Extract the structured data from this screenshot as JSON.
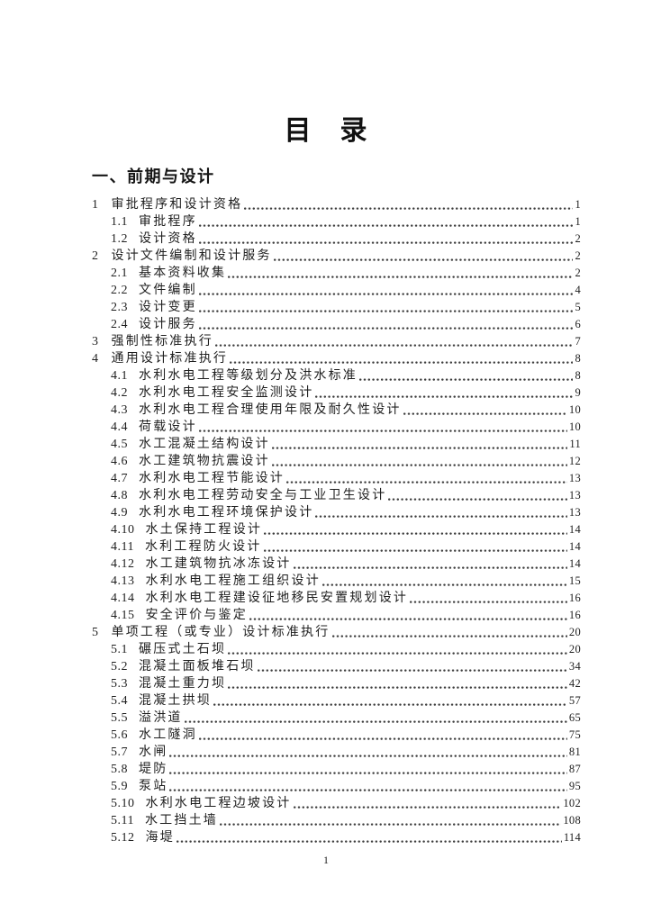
{
  "page": {
    "title": "目　录",
    "section_heading": "一、前期与设计",
    "footer_page_number": "1"
  },
  "colors": {
    "ink": "#1f1f1f",
    "paper": "#ffffff"
  },
  "toc": {
    "entries": [
      {
        "level": 1,
        "num": "1",
        "title": "审批程序和设计资格",
        "page": "1"
      },
      {
        "level": 2,
        "num": "1.1",
        "title": "审批程序",
        "page": "1"
      },
      {
        "level": 2,
        "num": "1.2",
        "title": "设计资格",
        "page": "2"
      },
      {
        "level": 1,
        "num": "2",
        "title": "设计文件编制和设计服务",
        "page": "2"
      },
      {
        "level": 2,
        "num": "2.1",
        "title": "基本资料收集",
        "page": "2"
      },
      {
        "level": 2,
        "num": "2.2",
        "title": "文件编制",
        "page": "4"
      },
      {
        "level": 2,
        "num": "2.3",
        "title": "设计变更",
        "page": "5"
      },
      {
        "level": 2,
        "num": "2.4",
        "title": "设计服务",
        "page": "6"
      },
      {
        "level": 1,
        "num": "3",
        "title": "强制性标准执行",
        "page": "7"
      },
      {
        "level": 1,
        "num": "4",
        "title": "通用设计标准执行",
        "page": "8"
      },
      {
        "level": 2,
        "num": "4.1",
        "title": "水利水电工程等级划分及洪水标准",
        "page": "8"
      },
      {
        "level": 2,
        "num": "4.2",
        "title": "水利水电工程安全监测设计",
        "page": "9"
      },
      {
        "level": 2,
        "num": "4.3",
        "title": "水利水电工程合理使用年限及耐久性设计",
        "page": "10"
      },
      {
        "level": 2,
        "num": "4.4",
        "title": "荷载设计",
        "page": "10"
      },
      {
        "level": 2,
        "num": "4.5",
        "title": "水工混凝土结构设计",
        "page": "11"
      },
      {
        "level": 2,
        "num": "4.6",
        "title": "水工建筑物抗震设计",
        "page": "12"
      },
      {
        "level": 2,
        "num": "4.7",
        "title": "水利水电工程节能设计",
        "page": "13"
      },
      {
        "level": 2,
        "num": "4.8",
        "title": "水利水电工程劳动安全与工业卫生设计",
        "page": "13"
      },
      {
        "level": 2,
        "num": "4.9",
        "title": "水利水电工程环境保护设计",
        "page": "13"
      },
      {
        "level": 2,
        "num": "4.10",
        "title": "水土保持工程设计",
        "page": "14"
      },
      {
        "level": 2,
        "num": "4.11",
        "title": "水利工程防火设计",
        "page": "14"
      },
      {
        "level": 2,
        "num": "4.12",
        "title": "水工建筑物抗冰冻设计",
        "page": "14"
      },
      {
        "level": 2,
        "num": "4.13",
        "title": "水利水电工程施工组织设计",
        "page": "15"
      },
      {
        "level": 2,
        "num": "4.14",
        "title": "水利水电工程建设征地移民安置规划设计",
        "page": "16"
      },
      {
        "level": 2,
        "num": "4.15",
        "title": "安全评价与鉴定",
        "page": "16"
      },
      {
        "level": 1,
        "num": "5",
        "title": "单项工程（或专业）设计标准执行",
        "page": "20"
      },
      {
        "level": 2,
        "num": "5.1",
        "title": "碾压式土石坝",
        "page": "20"
      },
      {
        "level": 2,
        "num": "5.2",
        "title": "混凝土面板堆石坝",
        "page": "34"
      },
      {
        "level": 2,
        "num": "5.3",
        "title": "混凝土重力坝",
        "page": "42"
      },
      {
        "level": 2,
        "num": "5.4",
        "title": "混凝土拱坝",
        "page": "57"
      },
      {
        "level": 2,
        "num": "5.5",
        "title": "溢洪道",
        "page": "65"
      },
      {
        "level": 2,
        "num": "5.6",
        "title": "水工隧洞",
        "page": "75"
      },
      {
        "level": 2,
        "num": "5.7",
        "title": "水闸",
        "page": "81"
      },
      {
        "level": 2,
        "num": "5.8",
        "title": "堤防",
        "page": "87"
      },
      {
        "level": 2,
        "num": "5.9",
        "title": "泵站",
        "page": "95"
      },
      {
        "level": 2,
        "num": "5.10",
        "title": "水利水电工程边坡设计",
        "page": "102"
      },
      {
        "level": 2,
        "num": "5.11",
        "title": "水工挡土墙",
        "page": "108"
      },
      {
        "level": 2,
        "num": "5.12",
        "title": "海堤",
        "page": "114"
      }
    ]
  }
}
